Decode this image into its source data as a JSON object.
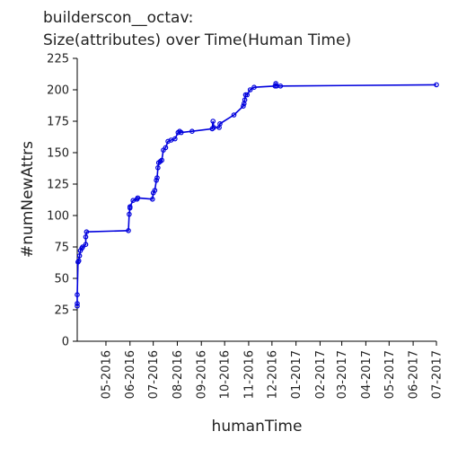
{
  "title_line1": "builderscon__octav:",
  "title_line2": "Size(attributes) over Time(Human Time)",
  "chart_data": {
    "type": "line",
    "xlabel": "humanTime",
    "ylabel": "#numNewAttrs",
    "ylim": [
      0,
      225
    ],
    "yticks": [
      0,
      25,
      50,
      75,
      100,
      125,
      150,
      175,
      200,
      225
    ],
    "xticks": [
      "05-2016",
      "06-2016",
      "07-2016",
      "08-2016",
      "09-2016",
      "10-2016",
      "11-2016",
      "12-2016",
      "01-2017",
      "02-2017",
      "03-2017",
      "04-2017",
      "05-2017",
      "06-2017",
      "07-2017"
    ],
    "x_start": "2016-03-25",
    "x_end": "2017-07-01",
    "grid": false,
    "color": "#0000dd",
    "series": [
      {
        "points": [
          [
            "2016-03-25",
            28
          ],
          [
            "2016-03-25",
            30
          ],
          [
            "2016-03-25",
            37
          ],
          [
            "2016-03-26",
            63
          ],
          [
            "2016-03-27",
            64
          ],
          [
            "2016-03-28",
            68
          ],
          [
            "2016-03-29",
            72
          ],
          [
            "2016-03-31",
            74
          ],
          [
            "2016-04-01",
            75
          ],
          [
            "2016-04-05",
            77
          ],
          [
            "2016-04-05",
            83
          ],
          [
            "2016-04-06",
            87
          ],
          [
            "2016-05-30",
            88
          ],
          [
            "2016-05-31",
            101
          ],
          [
            "2016-06-01",
            106
          ],
          [
            "2016-06-01",
            107
          ],
          [
            "2016-06-05",
            112
          ],
          [
            "2016-06-10",
            113
          ],
          [
            "2016-06-11",
            114
          ],
          [
            "2016-06-30",
            113
          ],
          [
            "2016-07-01",
            118
          ],
          [
            "2016-07-03",
            120
          ],
          [
            "2016-07-05",
            128
          ],
          [
            "2016-07-06",
            130
          ],
          [
            "2016-07-07",
            138
          ],
          [
            "2016-07-08",
            142
          ],
          [
            "2016-07-10",
            143
          ],
          [
            "2016-07-12",
            144
          ],
          [
            "2016-07-14",
            152
          ],
          [
            "2016-07-17",
            154
          ],
          [
            "2016-07-20",
            159
          ],
          [
            "2016-07-24",
            160
          ],
          [
            "2016-07-29",
            161
          ],
          [
            "2016-08-02",
            166
          ],
          [
            "2016-08-04",
            167
          ],
          [
            "2016-08-06",
            166
          ],
          [
            "2016-08-20",
            167
          ],
          [
            "2016-09-15",
            169
          ],
          [
            "2016-09-16",
            175
          ],
          [
            "2016-09-17",
            170
          ],
          [
            "2016-09-24",
            170
          ],
          [
            "2016-09-25",
            173
          ],
          [
            "2016-10-13",
            180
          ],
          [
            "2016-10-25",
            187
          ],
          [
            "2016-10-26",
            189
          ],
          [
            "2016-10-27",
            192
          ],
          [
            "2016-10-28",
            196
          ],
          [
            "2016-10-30",
            196
          ],
          [
            "2016-11-03",
            200
          ],
          [
            "2016-11-08",
            202
          ],
          [
            "2016-12-05",
            203
          ],
          [
            "2016-12-06",
            205
          ],
          [
            "2016-12-07",
            203
          ],
          [
            "2016-12-12",
            203
          ],
          [
            "2017-07-01",
            204
          ]
        ]
      }
    ]
  }
}
